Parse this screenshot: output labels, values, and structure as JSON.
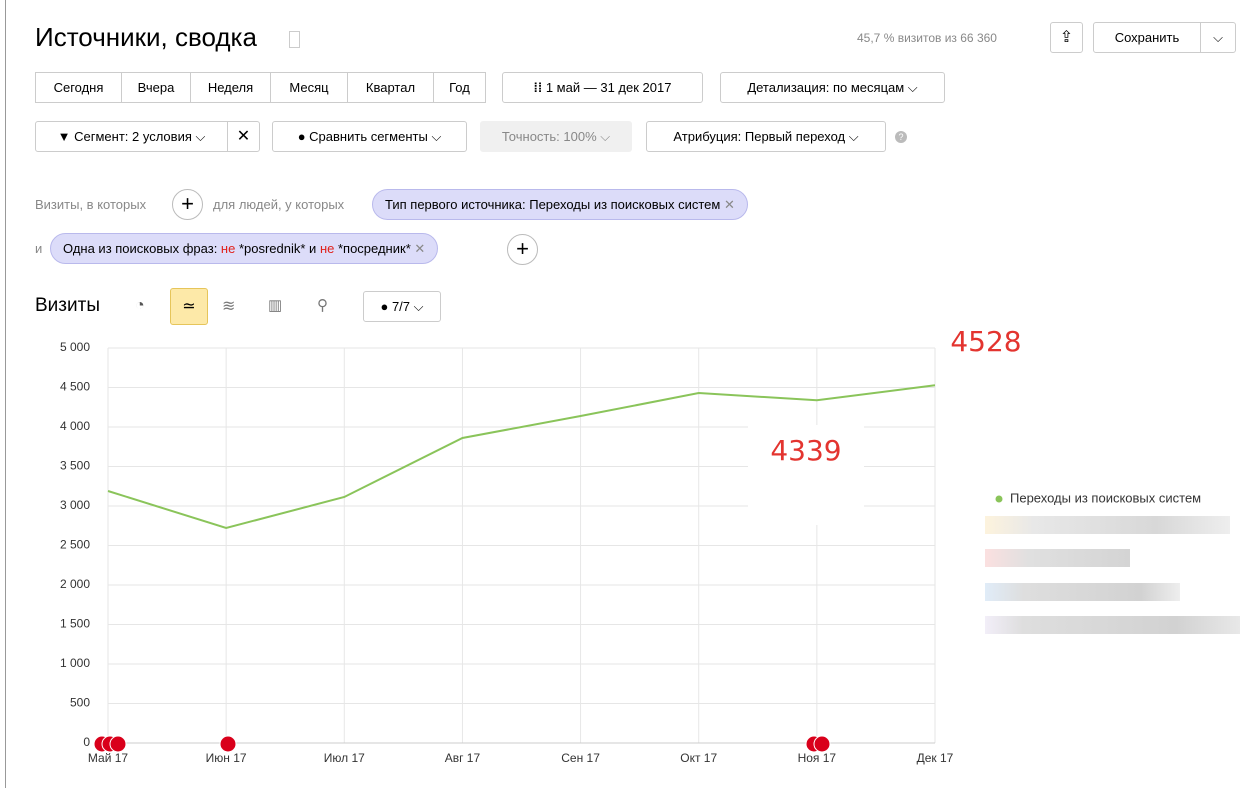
{
  "header": {
    "title": "Источники, сводка",
    "visits_share": "45,7 % визитов из 66 360",
    "save": "Сохранить"
  },
  "periods": [
    "Сегодня",
    "Вчера",
    "Неделя",
    "Месяц",
    "Квартал",
    "Год"
  ],
  "date_range": "1 май — 31 дек 2017",
  "detail": "Детализация: по месяцам",
  "segment": "Сегмент: 2 условия",
  "compare": "Сравнить сегменты",
  "accuracy": "Точность: 100%",
  "attribution": "Атрибуция: Первый переход",
  "filters": {
    "visits_where": "Визиты, в которых",
    "people_where": "для людей, у которых",
    "chip1": "Тип первого источника: Переходы из поисковых систем",
    "and": "и",
    "chip2": {
      "prefix": "Одна из поисковых фраз: ",
      "not1": "не",
      "mid": " *posrednik* и ",
      "not2": "не",
      "suffix": " *посредник*"
    }
  },
  "chart_heading": "Визиты",
  "annotations_toggle": "7/7",
  "chart_data": {
    "type": "line",
    "categories": [
      "Май 17",
      "Июн 17",
      "Июл 17",
      "Авг 17",
      "Сен 17",
      "Окт 17",
      "Ноя 17",
      "Дек 17"
    ],
    "series": [
      {
        "name": "Переходы из поисковых систем",
        "color": "#8ac45a",
        "values": [
          3190,
          2722,
          3114,
          3861,
          4139,
          4430,
          4339,
          4528
        ]
      }
    ],
    "ylim": [
      0,
      5000
    ],
    "yticks": [
      0,
      500,
      {
        "value": 1000,
        "label": "1 000"
      },
      {
        "value": 1500,
        "label": "1 500"
      },
      {
        "value": 2000,
        "label": "2 000"
      },
      {
        "value": 2500,
        "label": "2 500"
      },
      {
        "value": 3000,
        "label": "3 000"
      },
      {
        "value": 3500,
        "label": "3 500"
      },
      {
        "value": 4000,
        "label": "4 000"
      },
      {
        "value": 4500,
        "label": "4 500"
      },
      {
        "value": 5000,
        "label": "5 000"
      }
    ],
    "grid": true,
    "legend": "right",
    "annotations": [
      "4528",
      "4339"
    ]
  }
}
